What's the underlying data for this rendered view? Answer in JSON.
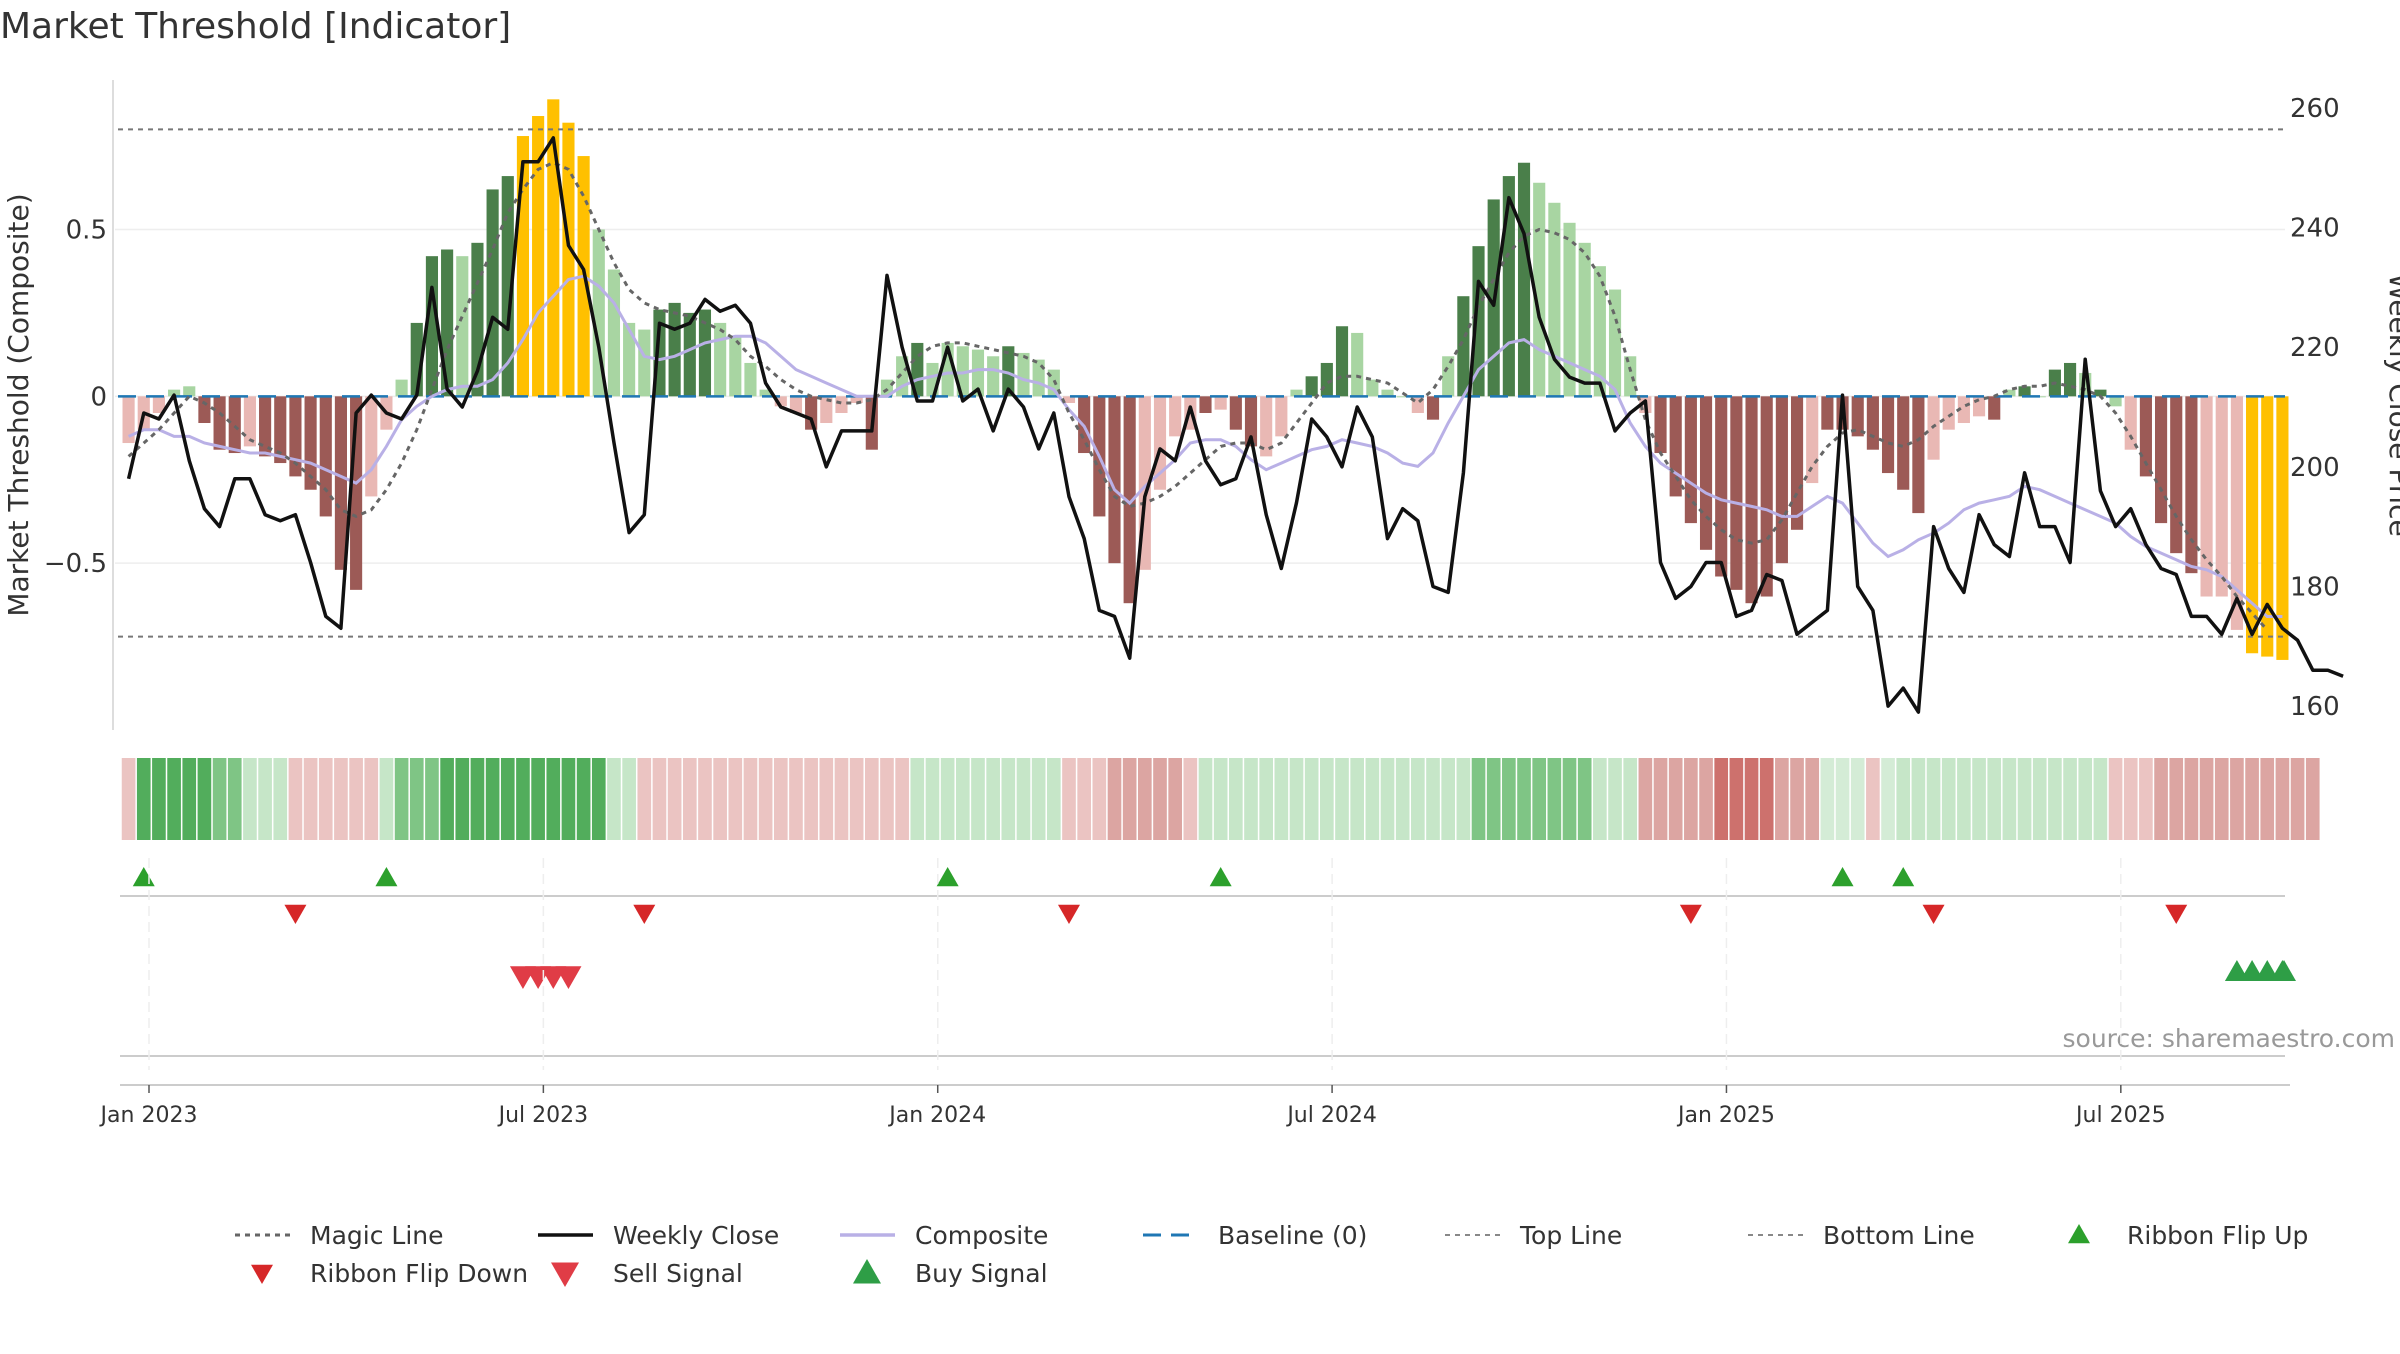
{
  "title": "Market Threshold [Indicator]",
  "source": "source: sharemaestro.com",
  "axes": {
    "left_label": "Market Threshold (Composite)",
    "right_label": "Weekly Close Price",
    "left_ticks": [
      {
        "v": 0.5,
        "label": "0.5"
      },
      {
        "v": 0,
        "label": "0"
      },
      {
        "v": -0.5,
        "label": "−0.5"
      }
    ],
    "right_ticks": [
      {
        "v": 160,
        "label": "160"
      },
      {
        "v": 180,
        "label": "180"
      },
      {
        "v": 200,
        "label": "200"
      },
      {
        "v": 220,
        "label": "220"
      },
      {
        "v": 240,
        "label": "240"
      },
      {
        "v": 260,
        "label": "260"
      }
    ],
    "x_ticks": [
      {
        "week": 0,
        "label": "Jan 2023"
      },
      {
        "week": 26,
        "label": "Jul 2023"
      },
      {
        "week": 52,
        "label": "Jan 2024"
      },
      {
        "week": 78,
        "label": "Jul 2024"
      },
      {
        "week": 104,
        "label": "Jan 2025"
      },
      {
        "week": 130,
        "label": "Jul 2025"
      }
    ]
  },
  "colors": {
    "strong_up": "#4a7f4a",
    "weak_up": "#a8d5a2",
    "strong_down": "#9c5a56",
    "weak_down": "#e9b8b4",
    "extreme": "#ffc000",
    "close": "#111111",
    "composite": "#b9b0e6",
    "magic": "#666666",
    "baseline": "#1f77b4",
    "buy": "#2ca02c",
    "sell": "#d62728",
    "signal_sell": "#e03c46",
    "signal_buy": "#2e9e46"
  },
  "chart_data": {
    "type": "bar",
    "weeks": 143,
    "y_left_range": [
      -1.0,
      0.9
    ],
    "y_right_range": [
      156,
      262
    ],
    "top_line": 0.8,
    "bottom_line": -0.72,
    "composite_bars": [
      -0.14,
      -0.1,
      -0.05,
      0.02,
      0.03,
      -0.08,
      -0.16,
      -0.17,
      -0.15,
      -0.18,
      -0.2,
      -0.24,
      -0.28,
      -0.36,
      -0.52,
      -0.58,
      -0.3,
      -0.1,
      0.05,
      0.22,
      0.42,
      0.44,
      0.42,
      0.46,
      0.62,
      0.66,
      0.78,
      0.84,
      0.89,
      0.82,
      0.72,
      0.5,
      0.38,
      0.22,
      0.2,
      0.26,
      0.28,
      0.25,
      0.26,
      0.22,
      0.18,
      0.1,
      0.02,
      -0.03,
      -0.05,
      -0.1,
      -0.08,
      -0.05,
      -0.02,
      -0.16,
      0.05,
      0.12,
      0.16,
      0.1,
      0.16,
      0.15,
      0.14,
      0.12,
      0.15,
      0.13,
      0.11,
      0.08,
      -0.02,
      -0.17,
      -0.36,
      -0.5,
      -0.62,
      -0.52,
      -0.28,
      -0.12,
      -0.1,
      -0.05,
      -0.04,
      -0.1,
      -0.15,
      -0.18,
      -0.12,
      0.02,
      0.06,
      0.1,
      0.21,
      0.19,
      0.05,
      0.02,
      0.0,
      -0.05,
      -0.07,
      0.12,
      0.3,
      0.45,
      0.59,
      0.66,
      0.7,
      0.64,
      0.58,
      0.52,
      0.46,
      0.39,
      0.32,
      0.12,
      -0.05,
      -0.17,
      -0.3,
      -0.38,
      -0.46,
      -0.54,
      -0.58,
      -0.62,
      -0.6,
      -0.5,
      -0.4,
      -0.26,
      -0.1,
      -0.1,
      -0.12,
      -0.16,
      -0.23,
      -0.28,
      -0.35,
      -0.19,
      -0.1,
      -0.08,
      -0.06,
      -0.07,
      0.02,
      0.03,
      0.0,
      0.08,
      0.1,
      0.07,
      0.02,
      -0.03,
      -0.16,
      -0.24,
      -0.38,
      -0.47,
      -0.53,
      -0.6,
      -0.6,
      -0.7,
      -0.77,
      -0.78,
      -0.79
    ],
    "bar_class": [
      "wd",
      "wd",
      "wd",
      "wu",
      "wu",
      "sd",
      "sd",
      "sd",
      "wd",
      "sd",
      "sd",
      "sd",
      "sd",
      "sd",
      "sd",
      "sd",
      "wd",
      "wd",
      "wu",
      "su",
      "su",
      "su",
      "wu",
      "su",
      "su",
      "su",
      "ex",
      "ex",
      "ex",
      "ex",
      "ex",
      "wu",
      "wu",
      "wu",
      "wu",
      "su",
      "su",
      "su",
      "su",
      "wu",
      "wu",
      "wu",
      "wu",
      "wd",
      "wd",
      "sd",
      "wd",
      "wd",
      "wd",
      "sd",
      "wu",
      "wu",
      "su",
      "wu",
      "wu",
      "wu",
      "wu",
      "wu",
      "su",
      "wu",
      "wu",
      "wu",
      "wd",
      "sd",
      "sd",
      "sd",
      "sd",
      "wd",
      "wd",
      "wd",
      "wd",
      "sd",
      "wd",
      "sd",
      "sd",
      "wd",
      "wd",
      "wu",
      "su",
      "su",
      "su",
      "wu",
      "wu",
      "wu",
      "wu",
      "wd",
      "sd",
      "wu",
      "su",
      "su",
      "su",
      "su",
      "su",
      "wu",
      "wu",
      "wu",
      "wu",
      "wu",
      "wu",
      "wu",
      "wd",
      "sd",
      "sd",
      "sd",
      "sd",
      "sd",
      "sd",
      "sd",
      "sd",
      "sd",
      "sd",
      "wd",
      "sd",
      "sd",
      "sd",
      "sd",
      "sd",
      "sd",
      "sd",
      "wd",
      "wd",
      "wd",
      "wd",
      "sd",
      "wu",
      "su",
      "wu",
      "su",
      "su",
      "wu",
      "su",
      "wu",
      "wd",
      "sd",
      "sd",
      "sd",
      "sd",
      "wd",
      "wd",
      "wd",
      "ex",
      "ex",
      "ex",
      "ex"
    ],
    "weekly_close": [
      198,
      209,
      208,
      212,
      201,
      193,
      190,
      198,
      198,
      192,
      191,
      192,
      184,
      175,
      173,
      209,
      212,
      209,
      208,
      212,
      230,
      213,
      210,
      216,
      225,
      223,
      251,
      251,
      255,
      237,
      233,
      220,
      204,
      189,
      192,
      224,
      223,
      224,
      228,
      226,
      227,
      224,
      214,
      210,
      209,
      208,
      200,
      206,
      206,
      206,
      232,
      220,
      211,
      211,
      220,
      211,
      213,
      206,
      213,
      210,
      203,
      209,
      195,
      188,
      176,
      175,
      168,
      195,
      203,
      201,
      210,
      201,
      197,
      198,
      205,
      192,
      183,
      194,
      208,
      205,
      200,
      210,
      205,
      188,
      193,
      191,
      180,
      179,
      199,
      231,
      227,
      245,
      239,
      225,
      218,
      215,
      214,
      214,
      206,
      209,
      211,
      184,
      178,
      180,
      184,
      184,
      175,
      176,
      182,
      181,
      172,
      174,
      176,
      212,
      180,
      176,
      160,
      163,
      159,
      190,
      183,
      179,
      192,
      187,
      185,
      199,
      190,
      190,
      184,
      218,
      196,
      190,
      193,
      187,
      183,
      182,
      175,
      175,
      172,
      178,
      172,
      177,
      173,
      171,
      166,
      166,
      165
    ],
    "composite_line": [
      -0.12,
      -0.1,
      -0.1,
      -0.12,
      -0.12,
      -0.14,
      -0.15,
      -0.16,
      -0.17,
      -0.17,
      -0.18,
      -0.19,
      -0.2,
      -0.22,
      -0.24,
      -0.26,
      -0.22,
      -0.15,
      -0.07,
      -0.03,
      0.0,
      0.02,
      0.03,
      0.03,
      0.05,
      0.1,
      0.17,
      0.25,
      0.3,
      0.35,
      0.36,
      0.33,
      0.28,
      0.2,
      0.12,
      0.11,
      0.12,
      0.14,
      0.16,
      0.17,
      0.18,
      0.18,
      0.16,
      0.12,
      0.08,
      0.06,
      0.04,
      0.02,
      0.0,
      0.0,
      0.0,
      0.03,
      0.05,
      0.06,
      0.07,
      0.07,
      0.08,
      0.08,
      0.07,
      0.05,
      0.04,
      0.02,
      -0.04,
      -0.09,
      -0.18,
      -0.28,
      -0.32,
      -0.27,
      -0.23,
      -0.19,
      -0.14,
      -0.13,
      -0.13,
      -0.15,
      -0.19,
      -0.22,
      -0.2,
      -0.18,
      -0.16,
      -0.15,
      -0.13,
      -0.14,
      -0.15,
      -0.17,
      -0.2,
      -0.21,
      -0.17,
      -0.08,
      0.0,
      0.08,
      0.12,
      0.16,
      0.17,
      0.14,
      0.12,
      0.1,
      0.08,
      0.06,
      0.02,
      -0.08,
      -0.15,
      -0.2,
      -0.23,
      -0.26,
      -0.29,
      -0.31,
      -0.32,
      -0.33,
      -0.34,
      -0.36,
      -0.36,
      -0.33,
      -0.3,
      -0.32,
      -0.38,
      -0.44,
      -0.48,
      -0.46,
      -0.43,
      -0.41,
      -0.38,
      -0.34,
      -0.32,
      -0.31,
      -0.3,
      -0.27,
      -0.28,
      -0.3,
      -0.32,
      -0.34,
      -0.36,
      -0.38,
      -0.42,
      -0.45,
      -0.47,
      -0.49,
      -0.51,
      -0.52,
      -0.54,
      -0.58,
      -0.62,
      -0.66,
      -0.66
    ],
    "magic_line": [
      -0.18,
      -0.14,
      -0.1,
      -0.05,
      0.0,
      -0.02,
      -0.05,
      -0.09,
      -0.13,
      -0.15,
      -0.17,
      -0.2,
      -0.24,
      -0.28,
      -0.34,
      -0.36,
      -0.34,
      -0.28,
      -0.2,
      -0.1,
      0.02,
      0.14,
      0.24,
      0.34,
      0.44,
      0.55,
      0.62,
      0.68,
      0.7,
      0.68,
      0.6,
      0.5,
      0.4,
      0.32,
      0.28,
      0.26,
      0.25,
      0.24,
      0.22,
      0.2,
      0.17,
      0.12,
      0.09,
      0.05,
      0.02,
      0.0,
      -0.01,
      -0.02,
      -0.02,
      -0.01,
      0.02,
      0.07,
      0.12,
      0.15,
      0.16,
      0.16,
      0.15,
      0.14,
      0.13,
      0.12,
      0.1,
      0.05,
      -0.05,
      -0.13,
      -0.22,
      -0.3,
      -0.33,
      -0.32,
      -0.3,
      -0.27,
      -0.23,
      -0.19,
      -0.15,
      -0.14,
      -0.14,
      -0.16,
      -0.14,
      -0.08,
      -0.02,
      0.04,
      0.06,
      0.06,
      0.05,
      0.04,
      0.01,
      -0.02,
      0.02,
      0.09,
      0.17,
      0.27,
      0.35,
      0.43,
      0.48,
      0.5,
      0.49,
      0.47,
      0.43,
      0.36,
      0.24,
      0.08,
      -0.07,
      -0.17,
      -0.24,
      -0.31,
      -0.36,
      -0.4,
      -0.43,
      -0.44,
      -0.43,
      -0.37,
      -0.29,
      -0.21,
      -0.15,
      -0.11,
      -0.1,
      -0.12,
      -0.14,
      -0.15,
      -0.13,
      -0.09,
      -0.06,
      -0.03,
      -0.01,
      0.0,
      0.02,
      0.03,
      0.03,
      0.04,
      0.03,
      0.02,
      0.0,
      -0.05,
      -0.12,
      -0.2,
      -0.28,
      -0.36,
      -0.43,
      -0.49,
      -0.54,
      -0.6,
      -0.65,
      -0.7
    ],
    "ribbon_class": [
      "wd",
      "sg",
      "sg",
      "sg",
      "sg",
      "sg",
      "mg",
      "mg",
      "lg",
      "lg",
      "lg",
      "wd",
      "wd",
      "wd",
      "wd",
      "wd",
      "wd",
      "lg",
      "mg",
      "mg",
      "mg",
      "sg",
      "sg",
      "sg",
      "sg",
      "sg",
      "sg",
      "sg",
      "sg",
      "sg",
      "sg",
      "sg",
      "lg",
      "lg",
      "wd",
      "wd",
      "wd",
      "wd",
      "wd",
      "wd",
      "wd",
      "wd",
      "wd",
      "wd",
      "wd",
      "wd",
      "wd",
      "wd",
      "wd",
      "wd",
      "wd",
      "wd",
      "lg",
      "lg",
      "lg",
      "lg",
      "lg",
      "lg",
      "lg",
      "lg",
      "lg",
      "lg",
      "wd",
      "wd",
      "wd",
      "md",
      "md",
      "md",
      "md",
      "md",
      "wd",
      "lg",
      "lg",
      "lg",
      "lg",
      "lg",
      "lg",
      "lg",
      "lg",
      "lg",
      "lg",
      "lg",
      "lg",
      "lg",
      "lg",
      "lg",
      "lg",
      "lg",
      "lg",
      "mg",
      "mg",
      "mg",
      "mg",
      "mg",
      "mg",
      "mg",
      "mg",
      "lg",
      "lg",
      "lg",
      "md",
      "md",
      "md",
      "md",
      "md",
      "sd",
      "sd",
      "sd",
      "sd",
      "md",
      "md",
      "md",
      "vl",
      "vl",
      "vl",
      "wd",
      "vl",
      "lg",
      "lg",
      "lg",
      "lg",
      "lg",
      "lg",
      "lg",
      "lg",
      "lg",
      "lg",
      "lg",
      "lg",
      "lg",
      "lg",
      "wd",
      "wd",
      "wd",
      "md",
      "md",
      "md",
      "md",
      "md",
      "md",
      "md",
      "md",
      "md",
      "md",
      "md"
    ],
    "ribbon_flip_up": [
      1,
      17,
      54,
      72,
      113,
      117
    ],
    "ribbon_flip_down": [
      11,
      34,
      62,
      103,
      119,
      135
    ],
    "sell_signals": [
      26,
      27,
      28,
      29
    ],
    "buy_signals": [
      139,
      140,
      141,
      142,
      143
    ]
  },
  "legend": [
    {
      "key": "magic",
      "label": "Magic Line"
    },
    {
      "key": "close",
      "label": "Weekly Close"
    },
    {
      "key": "composite",
      "label": "Composite"
    },
    {
      "key": "baseline",
      "label": "Baseline (0)"
    },
    {
      "key": "top",
      "label": "Top Line"
    },
    {
      "key": "bottom",
      "label": "Bottom Line"
    },
    {
      "key": "flipup",
      "label": "Ribbon Flip Up"
    },
    {
      "key": "flipdown",
      "label": "Ribbon Flip Down"
    },
    {
      "key": "sell",
      "label": "Sell Signal"
    },
    {
      "key": "buy",
      "label": "Buy Signal"
    }
  ]
}
